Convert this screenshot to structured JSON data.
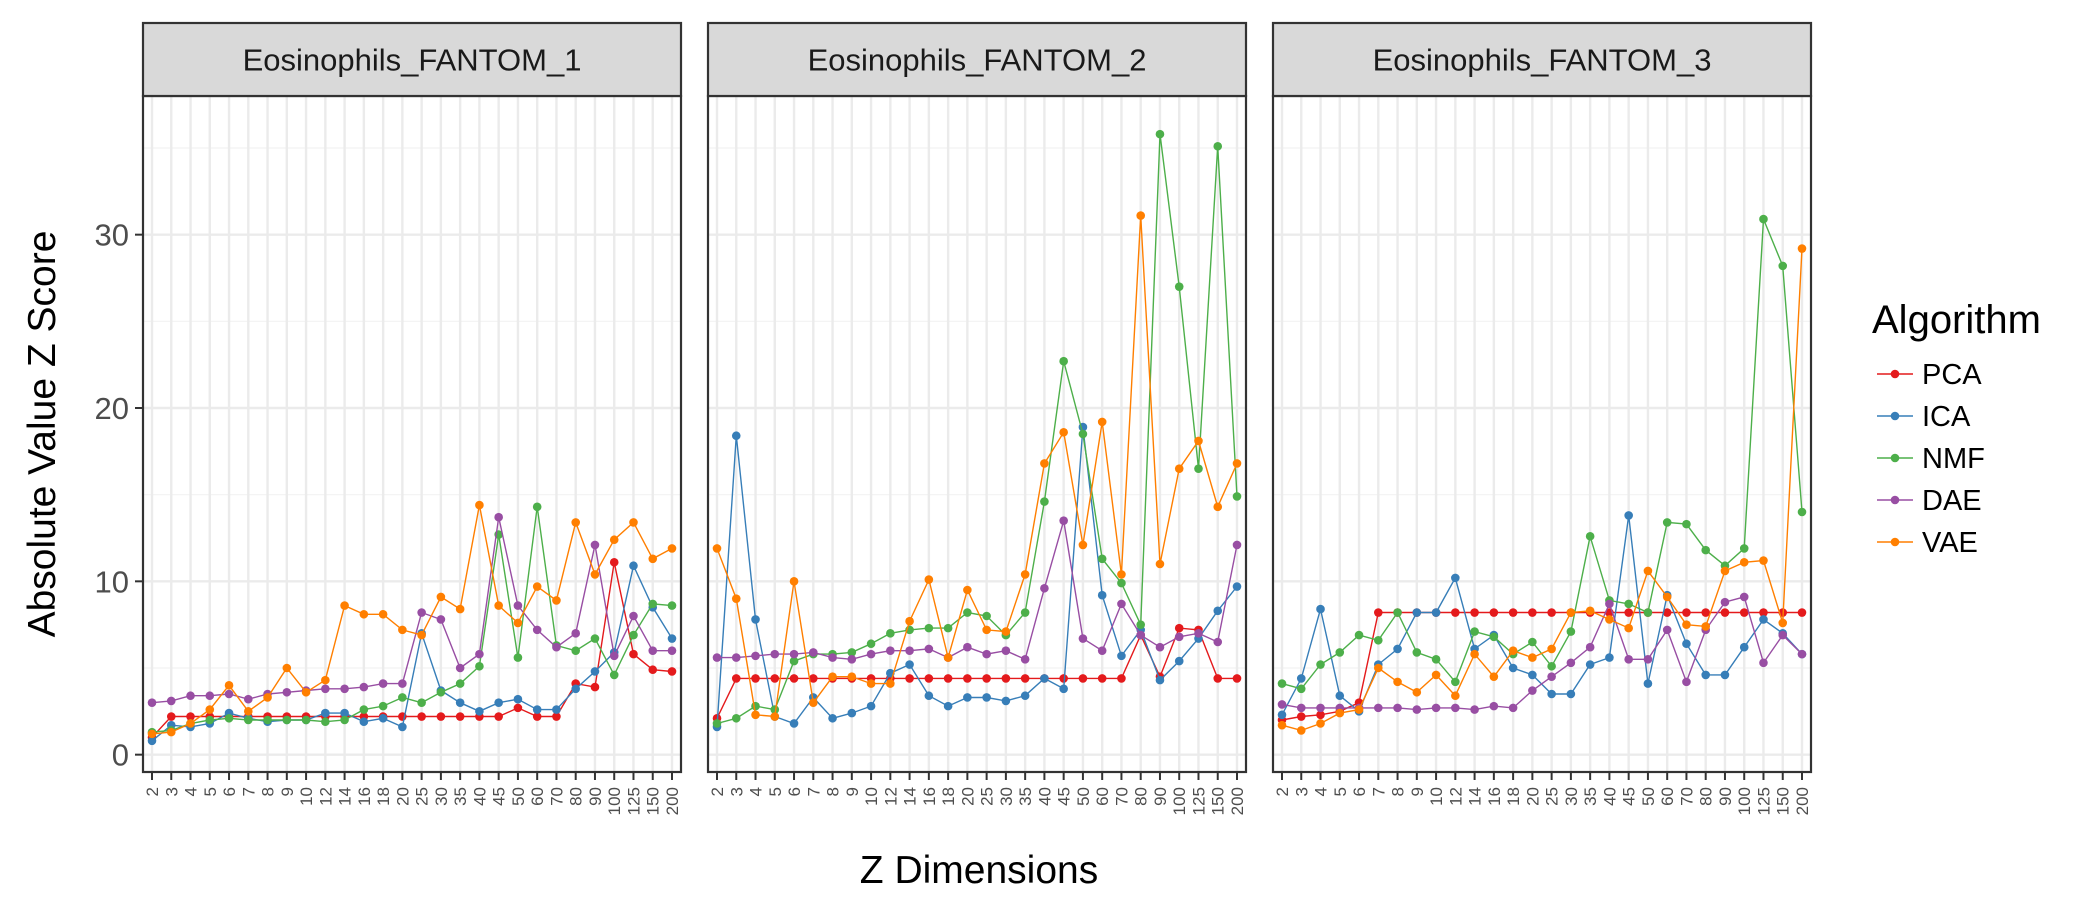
{
  "chart_data": {
    "type": "line",
    "facets": [
      "Eosinophils_FANTOM_1",
      "Eosinophils_FANTOM_2",
      "Eosinophils_FANTOM_3"
    ],
    "x": [
      "2",
      "3",
      "4",
      "5",
      "6",
      "7",
      "8",
      "9",
      "10",
      "12",
      "14",
      "16",
      "18",
      "20",
      "25",
      "30",
      "35",
      "40",
      "45",
      "50",
      "60",
      "70",
      "80",
      "90",
      "100",
      "125",
      "150",
      "200"
    ],
    "xlabel": "Z Dimensions",
    "ylabel": "Absolute Value Z Score",
    "ylim": [
      -1,
      38
    ],
    "yticks": [
      0,
      10,
      20,
      30
    ],
    "legend_title": "Algorithm",
    "legend_position": "right",
    "grid": true,
    "series": [
      {
        "name": "PCA",
        "color": "#e41a1c",
        "values": [
          [
            1.0,
            2.2,
            2.2,
            2.2,
            2.2,
            2.2,
            2.2,
            2.2,
            2.2,
            2.2,
            2.2,
            2.2,
            2.2,
            2.2,
            2.2,
            2.2,
            2.2,
            2.2,
            2.2,
            2.7,
            2.2,
            2.2,
            4.1,
            3.9,
            11.1,
            5.8,
            4.9,
            4.8
          ],
          [
            2.1,
            4.4,
            4.4,
            4.4,
            4.4,
            4.4,
            4.4,
            4.4,
            4.4,
            4.4,
            4.4,
            4.4,
            4.4,
            4.4,
            4.4,
            4.4,
            4.4,
            4.4,
            4.4,
            4.4,
            4.4,
            4.4,
            6.9,
            4.5,
            7.3,
            7.2,
            4.4,
            4.4
          ],
          [
            2.0,
            2.2,
            2.3,
            2.5,
            3.0,
            8.2,
            8.2,
            8.2,
            8.2,
            8.2,
            8.2,
            8.2,
            8.2,
            8.2,
            8.2,
            8.2,
            8.2,
            8.2,
            8.2,
            8.2,
            8.2,
            8.2,
            8.2,
            8.2,
            8.2,
            8.2,
            8.2,
            8.2
          ]
        ]
      },
      {
        "name": "ICA",
        "color": "#377eb8",
        "values": [
          [
            0.8,
            1.7,
            1.6,
            1.8,
            2.4,
            2.1,
            1.9,
            2.0,
            2.0,
            2.4,
            2.4,
            1.9,
            2.1,
            1.6,
            7.0,
            3.7,
            3.0,
            2.5,
            3.0,
            3.2,
            2.6,
            2.6,
            3.8,
            4.8,
            5.9,
            10.9,
            8.5,
            6.7
          ],
          [
            1.6,
            18.4,
            7.8,
            2.2,
            1.8,
            3.3,
            2.1,
            2.4,
            2.8,
            4.7,
            5.2,
            3.4,
            2.8,
            3.3,
            3.3,
            3.1,
            3.4,
            4.4,
            3.8,
            18.9,
            9.2,
            5.7,
            7.2,
            4.3,
            5.4,
            6.7,
            8.3,
            9.7
          ],
          [
            2.3,
            4.4,
            8.4,
            3.4,
            2.5,
            5.2,
            6.1,
            8.2,
            8.2,
            10.2,
            6.1,
            6.9,
            5.0,
            4.6,
            3.5,
            3.5,
            5.2,
            5.6,
            13.8,
            4.1,
            9.2,
            6.4,
            4.6,
            4.6,
            6.2,
            7.8,
            7.0,
            5.8
          ]
        ]
      },
      {
        "name": "NMF",
        "color": "#4daf4a",
        "values": [
          [
            1.3,
            1.4,
            1.8,
            2.0,
            2.1,
            2.0,
            2.0,
            2.0,
            2.0,
            1.9,
            2.0,
            2.6,
            2.8,
            3.3,
            3.0,
            3.6,
            4.1,
            5.1,
            12.7,
            5.6,
            14.3,
            6.3,
            6.0,
            6.7,
            4.6,
            6.9,
            8.7,
            8.6
          ],
          [
            1.8,
            2.1,
            2.8,
            2.6,
            5.4,
            5.8,
            5.8,
            5.9,
            6.4,
            7.0,
            7.2,
            7.3,
            7.3,
            8.2,
            8.0,
            6.9,
            8.2,
            14.6,
            22.7,
            18.5,
            11.3,
            9.9,
            7.5,
            35.8,
            27.0,
            16.5,
            35.1,
            14.9
          ],
          [
            4.1,
            3.8,
            5.2,
            5.9,
            6.9,
            6.6,
            8.2,
            5.9,
            5.5,
            4.2,
            7.1,
            6.8,
            5.8,
            6.5,
            5.1,
            7.1,
            12.6,
            8.9,
            8.7,
            8.2,
            13.4,
            13.3,
            11.8,
            10.9,
            11.9,
            30.9,
            28.2,
            14.0
          ]
        ]
      },
      {
        "name": "DAE",
        "color": "#984ea3",
        "values": [
          [
            3.0,
            3.1,
            3.4,
            3.4,
            3.5,
            3.2,
            3.5,
            3.6,
            3.7,
            3.8,
            3.8,
            3.9,
            4.1,
            4.1,
            8.2,
            7.8,
            5.0,
            5.8,
            13.7,
            8.6,
            7.2,
            6.2,
            7.0,
            12.1,
            5.7,
            8.0,
            6.0,
            6.0
          ],
          [
            5.6,
            5.6,
            5.7,
            5.8,
            5.8,
            5.9,
            5.6,
            5.5,
            5.8,
            6.0,
            6.0,
            6.1,
            5.6,
            6.2,
            5.8,
            6.0,
            5.5,
            9.6,
            13.5,
            6.7,
            6.0,
            8.7,
            6.9,
            6.2,
            6.8,
            7.0,
            6.5,
            12.1
          ],
          [
            2.9,
            2.7,
            2.7,
            2.7,
            2.7,
            2.7,
            2.7,
            2.6,
            2.7,
            2.7,
            2.6,
            2.8,
            2.7,
            3.7,
            4.5,
            5.3,
            6.2,
            8.7,
            5.5,
            5.5,
            7.2,
            4.2,
            7.2,
            8.8,
            9.1,
            5.3,
            6.9,
            5.8
          ]
        ]
      },
      {
        "name": "VAE",
        "color": "#ff7f00",
        "values": [
          [
            1.2,
            1.3,
            1.8,
            2.6,
            4.0,
            2.5,
            3.3,
            5.0,
            3.6,
            4.3,
            8.6,
            8.1,
            8.1,
            7.2,
            6.9,
            9.1,
            8.4,
            14.4,
            8.6,
            7.6,
            9.7,
            8.9,
            13.4,
            10.4,
            12.4,
            13.4,
            11.3,
            11.9
          ],
          [
            11.9,
            9.0,
            2.3,
            2.2,
            10.0,
            3.0,
            4.5,
            4.5,
            4.1,
            4.1,
            7.7,
            10.1,
            5.6,
            9.5,
            7.2,
            7.1,
            10.4,
            16.8,
            18.6,
            12.1,
            19.2,
            10.4,
            31.1,
            11.0,
            16.5,
            18.1,
            14.3,
            16.8
          ],
          [
            1.7,
            1.4,
            1.8,
            2.4,
            2.6,
            5.0,
            4.2,
            3.6,
            4.6,
            3.4,
            5.8,
            4.5,
            6.0,
            5.6,
            6.1,
            8.2,
            8.3,
            7.8,
            7.3,
            10.6,
            9.1,
            7.5,
            7.4,
            10.6,
            11.1,
            11.2,
            7.6,
            29.2
          ]
        ]
      }
    ]
  }
}
